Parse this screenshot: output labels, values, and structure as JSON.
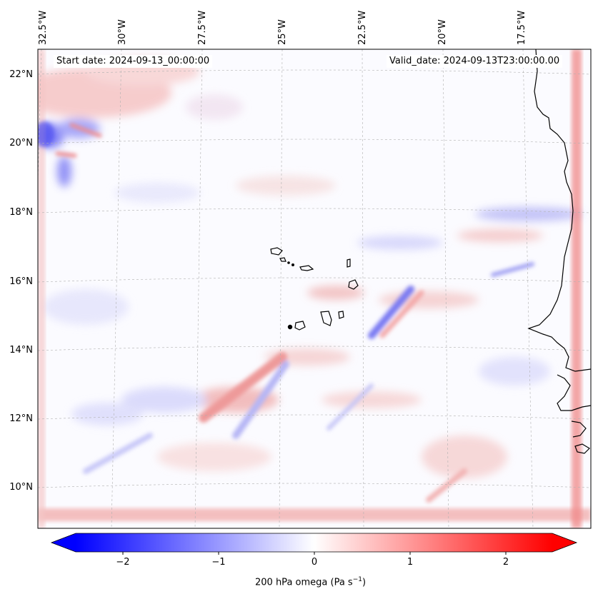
{
  "map": {
    "start_date": "Start date: 2024-09-13_00:00:00",
    "valid_date": "Valid_date: 2024-09-13T23:00:00.00",
    "longitude_labels": [
      "32.5°W",
      "30°W",
      "27.5°W",
      "25°W",
      "22.5°W",
      "20°W",
      "17.5°W"
    ],
    "latitude_labels": [
      "22°N",
      "20°N",
      "18°N",
      "16°N",
      "14°N",
      "12°N",
      "10°N"
    ],
    "colorbar": {
      "label": "200 hPa omega (Pa s",
      "label_superscript": "−1",
      "label_close": ")",
      "ticks": [
        "−2",
        "−1",
        "0",
        "1",
        "2"
      ],
      "min": -2.5,
      "max": 2.5,
      "colormap": "bwr",
      "color_low": "#0000ff",
      "color_mid": "#ffffff",
      "color_high": "#ff0000"
    },
    "features": [
      "coastline",
      "cape-verde-islands",
      "west-africa-coast",
      "gridlines"
    ]
  }
}
